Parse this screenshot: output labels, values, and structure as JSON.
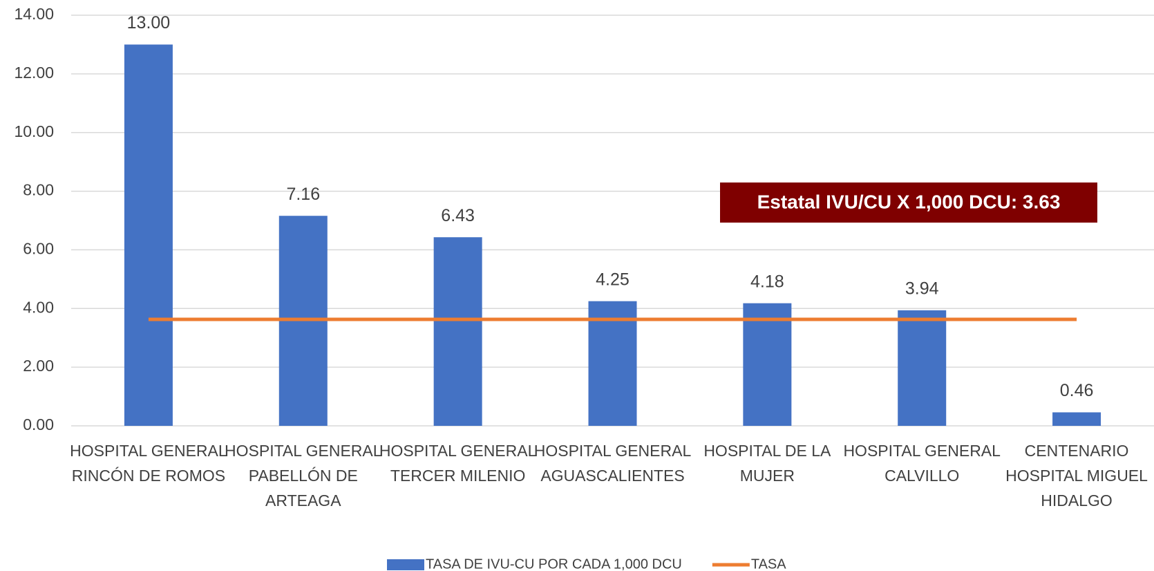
{
  "chart_data": {
    "type": "bar",
    "categories": [
      "HOSPITAL GENERAL RINCÓN DE ROMOS",
      "HOSPITAL GENERAL PABELLÓN DE ARTEAGA",
      "HOSPITAL GENERAL TERCER MILENIO",
      "HOSPITAL GENERAL AGUASCALIENTES",
      "HOSPITAL DE LA MUJER",
      "HOSPITAL GENERAL CALVILLO",
      "CENTENARIO HOSPITAL MIGUEL HIDALGO"
    ],
    "series": [
      {
        "name": "TASA DE IVU-CU POR CADA 1,000 DCU",
        "type": "bar",
        "color": "#4472c4",
        "values": [
          13.0,
          7.16,
          6.43,
          4.25,
          4.18,
          3.94,
          0.46
        ],
        "value_labels": [
          "13.00",
          "7.16",
          "6.43",
          "4.25",
          "4.18",
          "3.94",
          "0.46"
        ]
      },
      {
        "name": "TASA",
        "type": "line",
        "color": "#ed7d31",
        "values": [
          3.63,
          3.63,
          3.63,
          3.63,
          3.63,
          3.63,
          3.63
        ]
      }
    ],
    "annotation": "Estatal IVU/CU X 1,000 DCU: 3.63",
    "ylim": [
      0,
      14
    ],
    "yticks": [
      {
        "value": 0,
        "label": "0.00"
      },
      {
        "value": 2,
        "label": "2.00"
      },
      {
        "value": 4,
        "label": "4.00"
      },
      {
        "value": 6,
        "label": "6.00"
      },
      {
        "value": 8,
        "label": "8.00"
      },
      {
        "value": 10,
        "label": "10.00"
      },
      {
        "value": 12,
        "label": "12.00"
      },
      {
        "value": 14,
        "label": "14.00"
      }
    ],
    "grid": true,
    "legend": "bottom"
  }
}
